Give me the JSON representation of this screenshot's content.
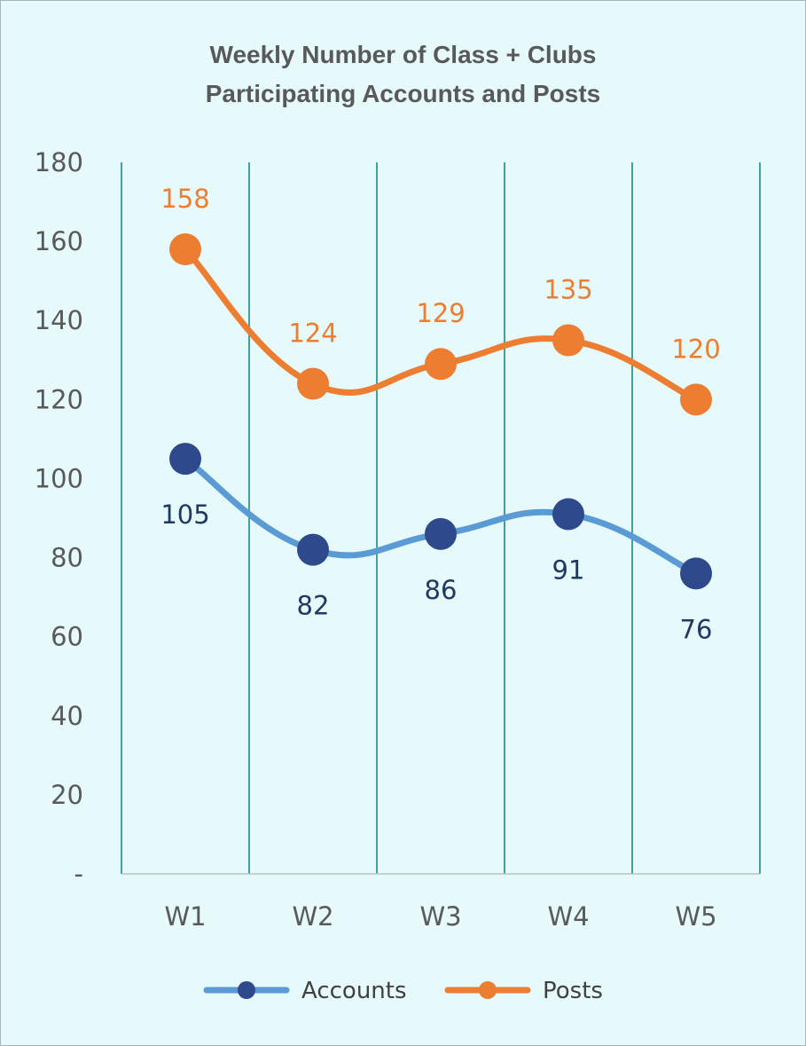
{
  "chart_data": {
    "type": "line",
    "title": [
      "Weekly Number of Class + Clubs",
      "Participating Accounts and Posts"
    ],
    "categories": [
      "W1",
      "W2",
      "W3",
      "W4",
      "W5"
    ],
    "y_ticks": [
      "-",
      "20",
      "40",
      "60",
      "80",
      "100",
      "120",
      "140",
      "160",
      "180"
    ],
    "ylim": [
      0,
      180
    ],
    "grid": "vertical",
    "legend_position": "bottom",
    "series": [
      {
        "name": "Accounts",
        "values": [
          105,
          82,
          86,
          91,
          76
        ],
        "line_color": "#5b9bd5",
        "marker_color": "#2e4a8c",
        "label_color": "#1f3864",
        "label_position": "below"
      },
      {
        "name": "Posts",
        "values": [
          158,
          124,
          129,
          135,
          120
        ],
        "line_color": "#ed7d31",
        "marker_color": "#ed7d31",
        "label_color": "#ed7d31",
        "label_position": "above"
      }
    ],
    "colors": {
      "background": "#e6fafb",
      "gridline": "#0f7f7f",
      "axis_text": "#595959"
    }
  }
}
